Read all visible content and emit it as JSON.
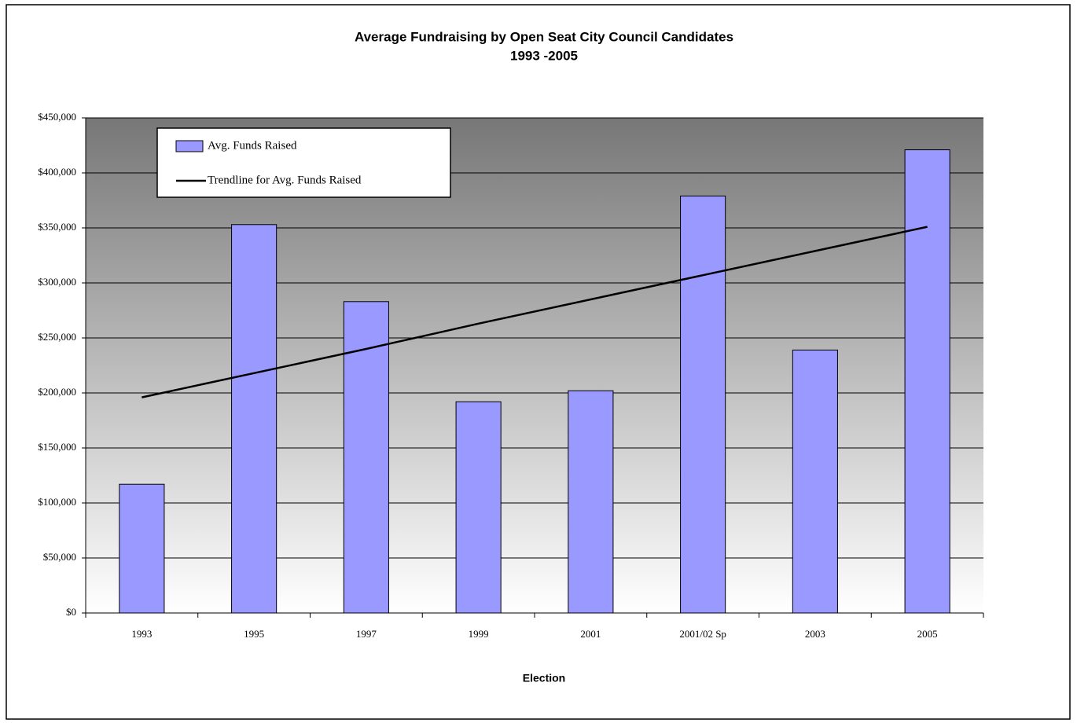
{
  "chart_data": {
    "type": "bar",
    "title": "Average Fundraising by Open Seat City Council Candidates",
    "subtitle": "1993 -2005",
    "x_label": "Election",
    "categories": [
      "1993",
      "1995",
      "1997",
      "1999",
      "2001",
      "2001/02 Sp",
      "2003",
      "2005"
    ],
    "series": [
      {
        "name": "Avg. Funds Raised",
        "type": "bar",
        "color": "#9999ff",
        "values": [
          117000,
          353000,
          283000,
          192000,
          202000,
          379000,
          239000,
          421000
        ]
      },
      {
        "name": "Trendline for Avg. Funds Raised",
        "type": "line",
        "color": "#000000",
        "values": [
          196000,
          218000,
          240000,
          263000,
          285000,
          307000,
          329000,
          351000
        ]
      }
    ],
    "ylim": [
      0,
      450000
    ],
    "yticks": [
      {
        "value": 0,
        "label": "$0"
      },
      {
        "value": 50000,
        "label": "$50,000"
      },
      {
        "value": 100000,
        "label": "$100,000"
      },
      {
        "value": 150000,
        "label": "$150,000"
      },
      {
        "value": 200000,
        "label": "$200,000"
      },
      {
        "value": 250000,
        "label": "$250,000"
      },
      {
        "value": 300000,
        "label": "$300,000"
      },
      {
        "value": 350000,
        "label": "$350,000"
      },
      {
        "value": 400000,
        "label": "$400,000"
      },
      {
        "value": 450000,
        "label": "$450,000"
      }
    ],
    "grid": true,
    "legend": "top-left"
  }
}
